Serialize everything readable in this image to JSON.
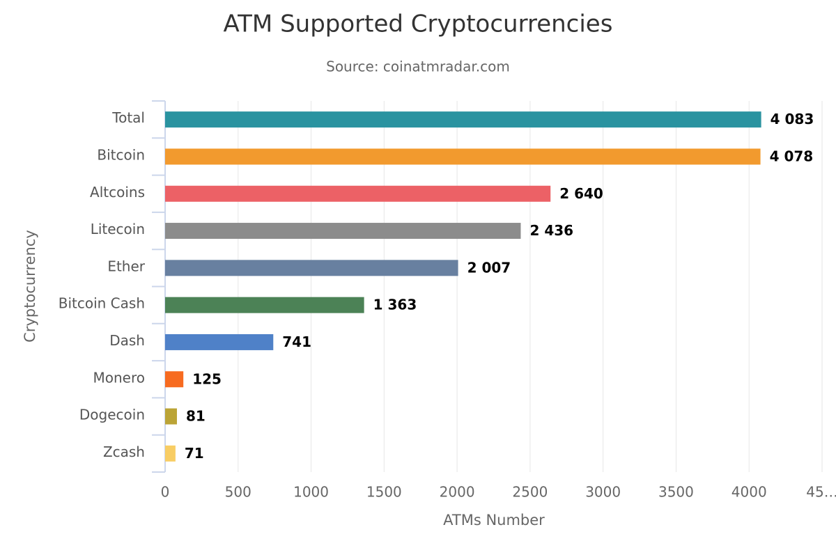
{
  "chart_data": {
    "type": "bar",
    "orientation": "horizontal",
    "title": "ATM Supported Cryptocurrencies",
    "subtitle": "Source: coinatmradar.com",
    "x_label": "ATMs Number",
    "y_label": "Cryptocurrency",
    "categories": [
      "Total",
      "Bitcoin",
      "Altcoins",
      "Litecoin",
      "Ether",
      "Bitcoin Cash",
      "Dash",
      "Monero",
      "Dogecoin",
      "Zcash"
    ],
    "values": [
      4083,
      4078,
      2640,
      2436,
      2007,
      1363,
      741,
      125,
      81,
      71
    ],
    "value_labels": [
      "4 083",
      "4 078",
      "2 640",
      "2 436",
      "2 007",
      "1 363",
      "741",
      "125",
      "81",
      "71"
    ],
    "colors": [
      "#2a93a0",
      "#f29a2e",
      "#ec6166",
      "#8c8c8c",
      "#6880a0",
      "#4c8256",
      "#4f81c8",
      "#f76b20",
      "#bba436",
      "#f8cd64"
    ],
    "xlim": [
      0,
      4500
    ],
    "xticks": [
      0,
      500,
      1000,
      1500,
      2000,
      2500,
      3000,
      3500,
      4000,
      {
        "value": 4500,
        "label": "45…"
      }
    ],
    "grid": true
  }
}
